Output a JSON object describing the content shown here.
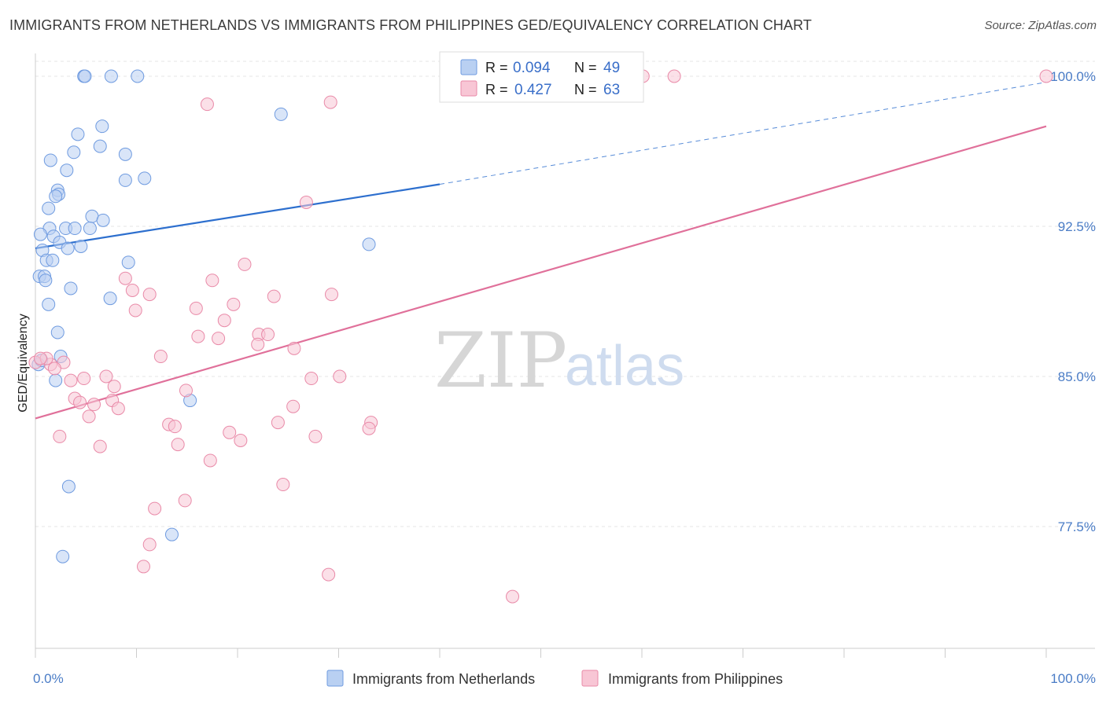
{
  "title": "IMMIGRANTS FROM NETHERLANDS VS IMMIGRANTS FROM PHILIPPINES GED/EQUIVALENCY CORRELATION CHART",
  "source": "Source: ZipAtlas.com",
  "watermark": {
    "zip": "ZIP",
    "atlas": "atlas"
  },
  "chart_data": {
    "type": "scatter",
    "ylabel": "GED/Equivalency",
    "xlim": [
      0,
      100
    ],
    "ylim": [
      71.5,
      101.5
    ],
    "x_tick_labels": [
      {
        "value": 0,
        "label": "0.0%"
      },
      {
        "value": 100,
        "label": "100.0%"
      }
    ],
    "y_ticks": [
      {
        "value": 100.0,
        "label": "100.0%"
      },
      {
        "value": 92.5,
        "label": "92.5%"
      },
      {
        "value": 85.0,
        "label": "85.0%"
      },
      {
        "value": 77.5,
        "label": "77.5%"
      }
    ],
    "grid": true,
    "legend_position": "top-center",
    "stats": [
      {
        "r_label": "R = ",
        "r": "0.094",
        "n_label": "N = ",
        "n": "49"
      },
      {
        "r_label": "R = ",
        "r": "0.427",
        "n_label": "N = ",
        "n": "63"
      }
    ],
    "series": [
      {
        "name": "Immigrants from Netherlands",
        "color": "#6f9be0",
        "fill": "#b9d0f2",
        "trend": {
          "x0": 0,
          "y0": 91.4,
          "x1": 40,
          "y1": 94.6,
          "dashed_to_x": 100,
          "dashed_to_y": 99.7
        },
        "trend_color": "#2d6fce",
        "points": [
          [
            4.8,
            100.0
          ],
          [
            4.9,
            100.0
          ],
          [
            7.5,
            100.0
          ],
          [
            10.1,
            100.0
          ],
          [
            24.3,
            98.1
          ],
          [
            6.6,
            97.5
          ],
          [
            4.2,
            97.1
          ],
          [
            6.4,
            96.5
          ],
          [
            3.8,
            96.2
          ],
          [
            8.9,
            96.1
          ],
          [
            1.5,
            95.8
          ],
          [
            3.1,
            95.3
          ],
          [
            8.9,
            94.8
          ],
          [
            10.8,
            94.9
          ],
          [
            2.2,
            94.3
          ],
          [
            2.3,
            94.1
          ],
          [
            2.0,
            94.0
          ],
          [
            1.3,
            93.4
          ],
          [
            5.6,
            93.0
          ],
          [
            6.7,
            92.8
          ],
          [
            1.4,
            92.4
          ],
          [
            3.0,
            92.4
          ],
          [
            3.9,
            92.4
          ],
          [
            5.4,
            92.4
          ],
          [
            0.5,
            92.1
          ],
          [
            1.8,
            92.0
          ],
          [
            2.4,
            91.7
          ],
          [
            3.2,
            91.4
          ],
          [
            4.5,
            91.5
          ],
          [
            0.7,
            91.3
          ],
          [
            1.1,
            90.8
          ],
          [
            1.7,
            90.8
          ],
          [
            9.2,
            90.7
          ],
          [
            33.0,
            91.6
          ],
          [
            0.4,
            90.0
          ],
          [
            0.9,
            90.0
          ],
          [
            1.0,
            89.8
          ],
          [
            3.5,
            89.4
          ],
          [
            7.4,
            88.9
          ],
          [
            1.3,
            88.6
          ],
          [
            2.2,
            87.2
          ],
          [
            2.5,
            86.0
          ],
          [
            2.0,
            84.8
          ],
          [
            15.3,
            83.8
          ],
          [
            0.3,
            85.6
          ],
          [
            3.3,
            79.5
          ],
          [
            13.5,
            77.1
          ],
          [
            2.7,
            76.0
          ],
          [
            0.6,
            85.8
          ]
        ]
      },
      {
        "name": "Immigrants from Philippines",
        "color": "#e98aa8",
        "fill": "#f8c6d5",
        "trend": {
          "x0": 0,
          "y0": 82.9,
          "x1": 100,
          "y1": 97.5
        },
        "trend_color": "#e0709a",
        "points": [
          [
            0.0,
            85.7
          ],
          [
            60.1,
            100.0
          ],
          [
            63.2,
            100.0
          ],
          [
            100.0,
            100.0
          ],
          [
            17.0,
            98.6
          ],
          [
            29.2,
            98.7
          ],
          [
            26.8,
            93.7
          ],
          [
            20.7,
            90.6
          ],
          [
            8.9,
            89.9
          ],
          [
            17.5,
            89.8
          ],
          [
            11.3,
            89.1
          ],
          [
            9.6,
            89.3
          ],
          [
            23.6,
            89.0
          ],
          [
            29.3,
            89.1
          ],
          [
            19.6,
            88.6
          ],
          [
            15.9,
            88.4
          ],
          [
            9.9,
            88.3
          ],
          [
            18.7,
            87.8
          ],
          [
            22.1,
            87.1
          ],
          [
            23.0,
            87.1
          ],
          [
            16.1,
            87.0
          ],
          [
            18.1,
            86.9
          ],
          [
            22.0,
            86.6
          ],
          [
            25.6,
            86.4
          ],
          [
            12.4,
            86.0
          ],
          [
            2.8,
            85.7
          ],
          [
            1.5,
            85.6
          ],
          [
            1.1,
            85.9
          ],
          [
            7.0,
            85.0
          ],
          [
            4.8,
            84.9
          ],
          [
            27.3,
            84.9
          ],
          [
            30.1,
            85.0
          ],
          [
            3.5,
            84.8
          ],
          [
            7.8,
            84.5
          ],
          [
            14.9,
            84.3
          ],
          [
            3.9,
            83.9
          ],
          [
            4.4,
            83.7
          ],
          [
            5.8,
            83.6
          ],
          [
            7.6,
            83.8
          ],
          [
            8.2,
            83.4
          ],
          [
            25.5,
            83.5
          ],
          [
            5.3,
            83.0
          ],
          [
            33.2,
            82.7
          ],
          [
            33.0,
            82.4
          ],
          [
            13.2,
            82.6
          ],
          [
            13.8,
            82.5
          ],
          [
            24.0,
            82.7
          ],
          [
            19.2,
            82.2
          ],
          [
            27.7,
            82.0
          ],
          [
            2.4,
            82.0
          ],
          [
            20.3,
            81.8
          ],
          [
            14.1,
            81.6
          ],
          [
            6.4,
            81.5
          ],
          [
            17.3,
            80.8
          ],
          [
            24.5,
            79.6
          ],
          [
            14.8,
            78.8
          ],
          [
            11.8,
            78.4
          ],
          [
            11.3,
            76.6
          ],
          [
            10.7,
            75.5
          ],
          [
            29.0,
            75.1
          ],
          [
            47.2,
            74.0
          ],
          [
            0.5,
            85.9
          ],
          [
            1.9,
            85.4
          ]
        ]
      }
    ]
  }
}
